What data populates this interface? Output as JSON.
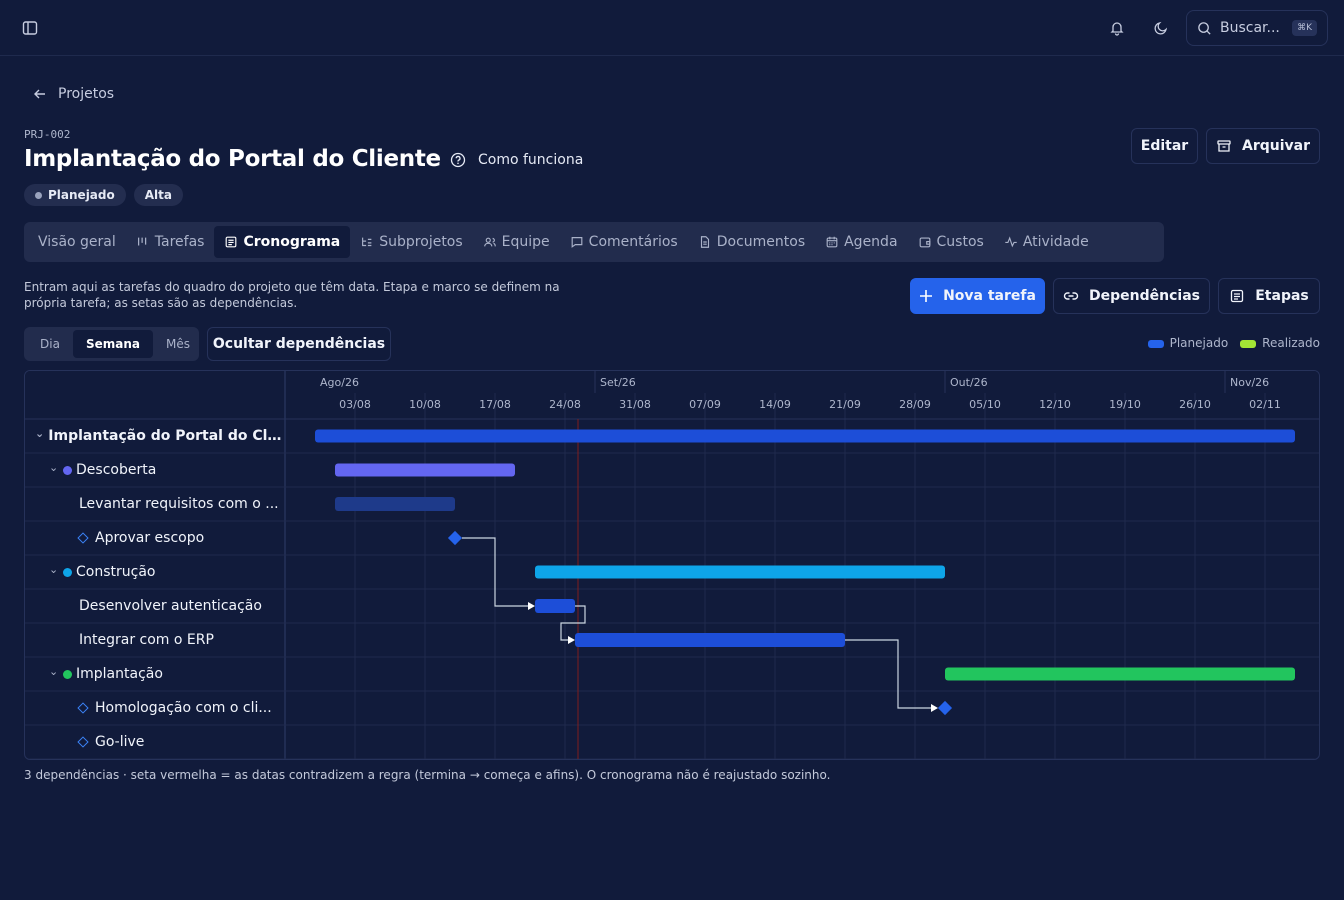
{
  "topbar": {
    "search_label": "Buscar...",
    "search_shortcut": "⌘K"
  },
  "breadcrumb": {
    "back_label": "Projetos"
  },
  "project": {
    "code": "PRJ-002",
    "title": "Implantação do Portal do Cliente",
    "help_label": "Como funciona",
    "status": "Planejado",
    "priority": "Alta",
    "status_color": "#9aa3bd"
  },
  "actions": {
    "edit": "Editar",
    "archive": "Arquivar"
  },
  "tabs": [
    {
      "label": "Visão geral",
      "icon": "none",
      "active": false
    },
    {
      "label": "Tarefas",
      "icon": "kanban-icon",
      "active": false
    },
    {
      "label": "Cronograma",
      "icon": "calendar-list-icon",
      "active": true
    },
    {
      "label": "Subprojetos",
      "icon": "tree-icon",
      "active": false
    },
    {
      "label": "Equipe",
      "icon": "users-icon",
      "active": false
    },
    {
      "label": "Comentários",
      "icon": "message-icon",
      "active": false
    },
    {
      "label": "Documentos",
      "icon": "file-icon",
      "active": false
    },
    {
      "label": "Agenda",
      "icon": "calendar-icon",
      "active": false
    },
    {
      "label": "Custos",
      "icon": "wallet-icon",
      "active": false
    },
    {
      "label": "Atividade",
      "icon": "activity-icon",
      "active": false
    }
  ],
  "schedule": {
    "description": "Entram aqui as tarefas do quadro do projeto que têm data. Etapa e marco se definem na própria tarefa; as setas são as dependências.",
    "new_task": "Nova tarefa",
    "dependencies": "Dependências",
    "stages": "Etapas",
    "zoom": [
      "Dia",
      "Semana",
      "Mês"
    ],
    "zoom_active": "Semana",
    "toggle_dependencies": "Ocultar dependências",
    "legend": [
      {
        "label": "Planejado",
        "color": "#2563eb"
      },
      {
        "label": "Realizado",
        "color": "#a3e635"
      }
    ],
    "months": [
      {
        "label": "Ago/26",
        "week": 0
      },
      {
        "label": "Set/26",
        "week": 4
      },
      {
        "label": "Out/26",
        "week": 9
      },
      {
        "label": "Nov/26",
        "week": 13
      }
    ],
    "weeks": [
      "03/08",
      "10/08",
      "17/08",
      "24/08",
      "31/08",
      "07/09",
      "14/09",
      "21/09",
      "28/09",
      "05/10",
      "12/10",
      "19/10",
      "26/10",
      "02/11"
    ],
    "today_week": 3.7,
    "footer": "3 dependências · seta vermelha = as datas contradizem a regra (termina → começa e afins). O cronograma não é reajustado sozinho."
  },
  "chart_data": {
    "type": "gantt",
    "rows": [
      {
        "label": "Implantação do Portal do Clie...",
        "level": 0,
        "kind": "project",
        "start": "2026-08-03",
        "end": "2026-11-09",
        "color": "#1d4ed8"
      },
      {
        "label": "Descoberta",
        "level": 1,
        "kind": "stage",
        "start": "2026-08-05",
        "end": "2026-08-23",
        "color": "#6366f1",
        "dot": "#6366f1"
      },
      {
        "label": "Levantar requisitos com o ...",
        "level": 2,
        "kind": "task",
        "start": "2026-08-05",
        "end": "2026-08-17",
        "color": "#1e3a8a"
      },
      {
        "label": "Aprovar escopo",
        "level": 2,
        "kind": "milestone",
        "date": "2026-08-17",
        "color": "#2563eb"
      },
      {
        "label": "Construção",
        "level": 1,
        "kind": "stage",
        "start": "2026-08-25",
        "end": "2026-10-05",
        "color": "#0ea5e9",
        "dot": "#0ea5e9"
      },
      {
        "label": "Desenvolver autenticação",
        "level": 2,
        "kind": "task",
        "start": "2026-08-25",
        "end": "2026-08-29",
        "color": "#1d4ed8"
      },
      {
        "label": "Integrar com o ERP",
        "level": 2,
        "kind": "task",
        "start": "2026-08-29",
        "end": "2026-09-25",
        "color": "#1d4ed8"
      },
      {
        "label": "Implantação",
        "level": 1,
        "kind": "stage",
        "start": "2026-10-05",
        "end": "2026-11-09",
        "color": "#22c55e",
        "dot": "#22c55e"
      },
      {
        "label": "Homologação com o cli...",
        "level": 2,
        "kind": "milestone",
        "date": "2026-10-05",
        "color": "#2563eb"
      },
      {
        "label": "Go-live",
        "level": 2,
        "kind": "milestone-empty"
      }
    ],
    "dependencies": [
      {
        "from": "Aprovar escopo",
        "to": "Desenvolver autenticação"
      },
      {
        "from": "Desenvolver autenticação",
        "to": "Integrar com o ERP"
      },
      {
        "from": "Integrar com o ERP",
        "to": "Homologação com o cli..."
      }
    ]
  }
}
